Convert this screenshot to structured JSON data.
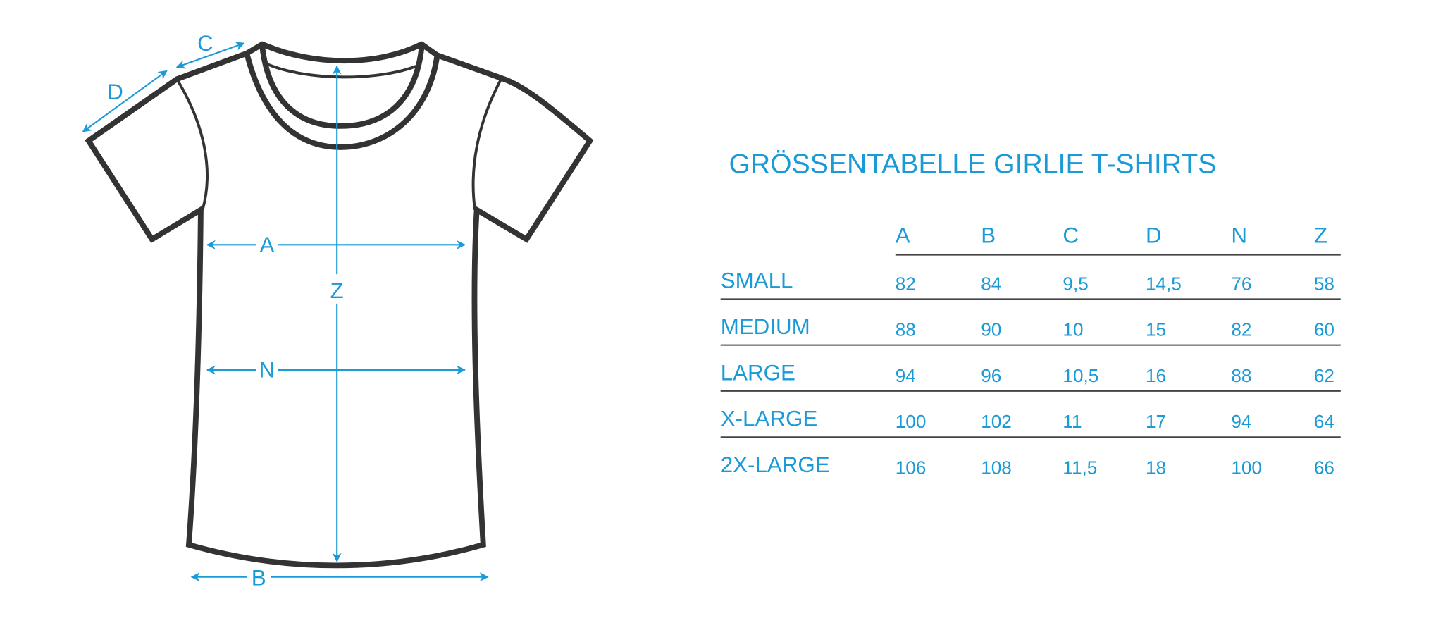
{
  "title": "GRÖSSENTABELLE GIRLIE T-SHIRTS",
  "accent_color": "#1a9ad6",
  "diagram_labels": {
    "A": "A",
    "B": "B",
    "C": "C",
    "D": "D",
    "N": "N",
    "Z": "Z"
  },
  "table": {
    "columns": [
      "A",
      "B",
      "C",
      "D",
      "N",
      "Z"
    ],
    "rows": [
      {
        "size": "SMALL",
        "values": [
          "82",
          "84",
          "9,5",
          "14,5",
          "76",
          "58"
        ]
      },
      {
        "size": "MEDIUM",
        "values": [
          "88",
          "90",
          "10",
          "15",
          "82",
          "60"
        ]
      },
      {
        "size": "LARGE",
        "values": [
          "94",
          "96",
          "10,5",
          "16",
          "88",
          "62"
        ]
      },
      {
        "size": "X-LARGE",
        "values": [
          "100",
          "102",
          "11",
          "17",
          "94",
          "64"
        ]
      },
      {
        "size": "2X-LARGE",
        "values": [
          "106",
          "108",
          "11,5",
          "18",
          "100",
          "66"
        ]
      }
    ]
  }
}
